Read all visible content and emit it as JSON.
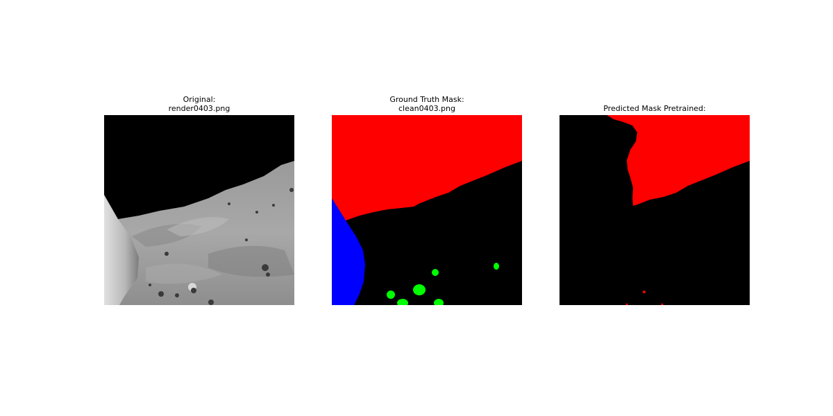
{
  "panels": [
    {
      "title_line1": "Original:",
      "title_line2": "render0403.png",
      "image_kind": "grayscale lunar terrain render with black sky and large boulder on left"
    },
    {
      "title_line1": "Ground Truth Mask:",
      "title_line2": "clean0403.png",
      "image_kind": "segmentation mask"
    },
    {
      "title_line1": "Predicted Mask Pretrained:",
      "title_line2": "",
      "image_kind": "segmentation mask"
    }
  ],
  "mask_colors": {
    "sky": "#ff0000",
    "ground": "#000000",
    "large_rock": "#0000ff",
    "small_rock": "#00ff00"
  },
  "render_colors": {
    "sky": "#000000",
    "terrain_light": "#b0b0b0",
    "terrain_dark": "#7a7a7a",
    "boulder": "#c8c8c8"
  }
}
